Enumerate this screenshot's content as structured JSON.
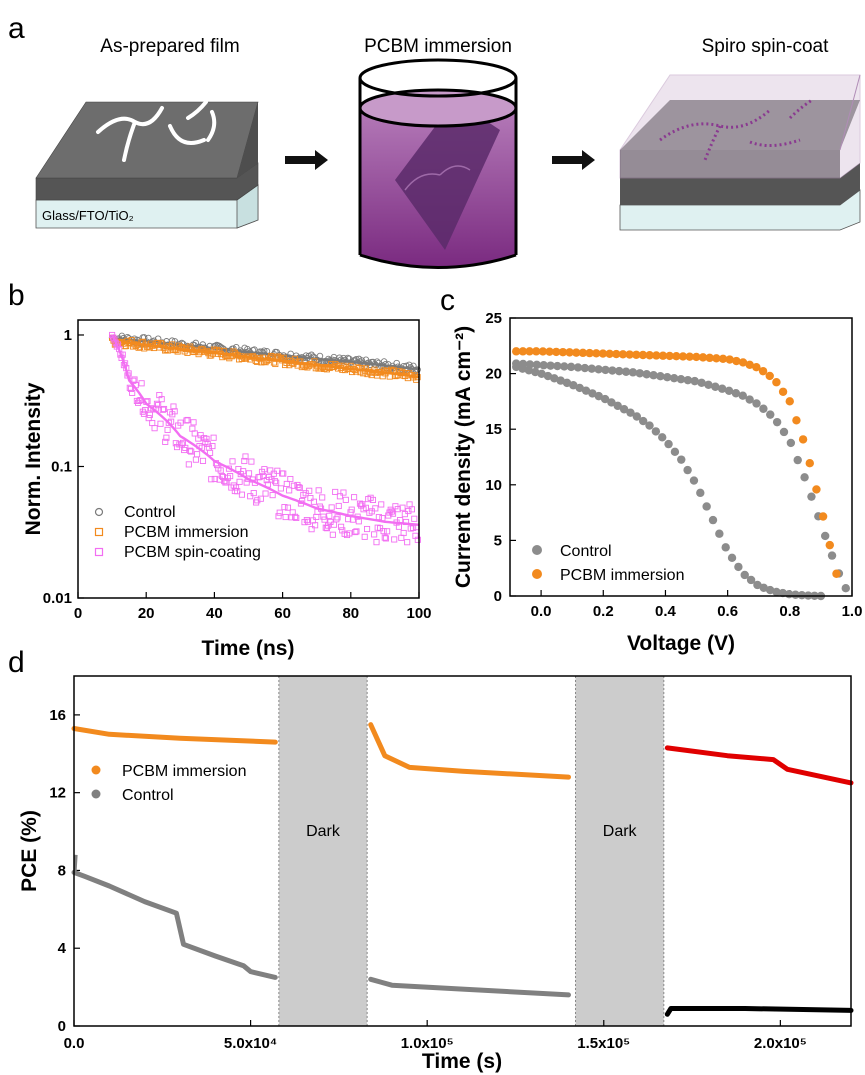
{
  "panel_a": {
    "label": "a",
    "steps": [
      {
        "title": "As-prepared film",
        "substrate_label": "Glass/FTO/TiO₂"
      },
      {
        "title": "PCBM immersion"
      },
      {
        "title": "Spiro spin-coat"
      }
    ]
  },
  "chart_data": [
    {
      "panel": "b",
      "type": "scatter",
      "xlabel": "Time (ns)",
      "ylabel": "Norm. Intensity",
      "xlim": [
        0,
        100
      ],
      "ylim": [
        0.01,
        1.3
      ],
      "yscale": "log",
      "xticks": [
        "0",
        "20",
        "40",
        "60",
        "80",
        "100"
      ],
      "yticks": [
        "0.01",
        "0.1",
        "1"
      ],
      "legend_position": "bottom-left",
      "series": [
        {
          "name": "Control",
          "color": "#7a7a7a",
          "marker": "open-circle",
          "fit": {
            "x": [
              10,
              30,
              50,
              70,
              100
            ],
            "y": [
              0.95,
              0.84,
              0.74,
              0.66,
              0.55
            ]
          }
        },
        {
          "name": "PCBM immersion",
          "color": "#f28a1e",
          "marker": "open-square",
          "fit": {
            "x": [
              10,
              30,
              50,
              70,
              100
            ],
            "y": [
              0.9,
              0.78,
              0.68,
              0.59,
              0.48
            ]
          }
        },
        {
          "name": "PCBM spin-coating",
          "color": "#f26ef2",
          "marker": "open-square",
          "fit": {
            "x": [
              10,
              15,
              20,
              30,
              40,
              50,
              60,
              70,
              80,
              90,
              100
            ],
            "y": [
              1.0,
              0.45,
              0.3,
              0.17,
              0.11,
              0.08,
              0.06,
              0.048,
              0.042,
              0.038,
              0.036
            ]
          }
        }
      ]
    },
    {
      "panel": "c",
      "type": "scatter",
      "xlabel": "Voltage (V)",
      "ylabel": "Current density (mA cm⁻²)",
      "xlim": [
        -0.1,
        1.0
      ],
      "ylim": [
        0,
        25
      ],
      "xticks": [
        "0.0",
        "0.2",
        "0.4",
        "0.6",
        "0.8",
        "1.0"
      ],
      "yticks": [
        "0",
        "5",
        "10",
        "15",
        "20",
        "25"
      ],
      "legend_position": "bottom-left",
      "series": [
        {
          "name": "Control",
          "color": "#8c8c8c",
          "x": [
            -0.08,
            0.0,
            0.1,
            0.2,
            0.3,
            0.35,
            0.4,
            0.45,
            0.5,
            0.55,
            0.6,
            0.65,
            0.7,
            0.75,
            0.8,
            0.85,
            0.9
          ],
          "y": [
            20.6,
            20.0,
            19.0,
            17.8,
            16.3,
            15.3,
            14.0,
            12.3,
            10.0,
            7.0,
            4.0,
            2.0,
            0.9,
            0.4,
            0.15,
            0.05,
            0.0
          ]
        },
        {
          "name": "Control",
          "color": "#8c8c8c",
          "x": [
            -0.08,
            0.1,
            0.3,
            0.5,
            0.6,
            0.65,
            0.7,
            0.75,
            0.8,
            0.85,
            0.9,
            0.95,
            0.98
          ],
          "y": [
            20.9,
            20.6,
            20.1,
            19.3,
            18.5,
            18.0,
            17.2,
            16.0,
            14.0,
            10.5,
            6.5,
            2.5,
            0.7
          ]
        },
        {
          "name": "PCBM immersion",
          "color": "#f28a1e",
          "x": [
            -0.08,
            0.0,
            0.1,
            0.2,
            0.3,
            0.4,
            0.5,
            0.6,
            0.65,
            0.7,
            0.75,
            0.8,
            0.85,
            0.9,
            0.95
          ],
          "y": [
            22.0,
            22.0,
            21.9,
            21.8,
            21.7,
            21.6,
            21.5,
            21.3,
            21.0,
            20.5,
            19.5,
            17.5,
            13.5,
            8.0,
            2.0
          ]
        }
      ]
    },
    {
      "panel": "d",
      "type": "scatter",
      "xlabel": "Time (s)",
      "ylabel": "PCE (%)",
      "xlim": [
        0,
        220000
      ],
      "ylim": [
        0,
        18
      ],
      "xticks": [
        "0.0",
        "5.0x10⁴",
        "1.0x10⁵",
        "1.5x10⁵",
        "2.0x10⁵"
      ],
      "yticks": [
        "0",
        "4",
        "8",
        "12",
        "16"
      ],
      "legend_position": "upper-left",
      "dark_periods": [
        {
          "label": "Dark",
          "x": [
            58000,
            83000
          ]
        },
        {
          "label": "Dark",
          "x": [
            142000,
            167000
          ]
        }
      ],
      "series": [
        {
          "name": "PCBM immersion",
          "color": "#f28a1e",
          "segments": [
            {
              "x": [
                0,
                10000,
                30000,
                57000
              ],
              "y": [
                15.3,
                15.0,
                14.8,
                14.6
              ]
            },
            {
              "x": [
                84000,
                88000,
                95000,
                110000,
                140000
              ],
              "y": [
                15.5,
                13.9,
                13.3,
                13.1,
                12.8
              ]
            }
          ]
        },
        {
          "name": "Control",
          "color": "#808080",
          "segments": [
            {
              "x": [
                0,
                3000,
                10000,
                20000,
                29000,
                31000,
                40000,
                48000,
                50000,
                57000
              ],
              "y": [
                7.9,
                7.7,
                7.2,
                6.4,
                5.8,
                4.2,
                3.6,
                3.1,
                2.8,
                2.5
              ]
            },
            {
              "x": [
                84000,
                90000,
                110000,
                140000
              ],
              "y": [
                2.4,
                2.1,
                1.9,
                1.6
              ]
            }
          ]
        },
        {
          "color": "#e00000",
          "segments": [
            {
              "x": [
                168000,
                185000,
                198000,
                202000,
                220000
              ],
              "y": [
                14.3,
                13.9,
                13.7,
                13.2,
                12.5
              ]
            }
          ]
        },
        {
          "color": "#000000",
          "segments": [
            {
              "x": [
                168000,
                169000,
                190000,
                220000
              ],
              "y": [
                0.6,
                0.9,
                0.9,
                0.8
              ]
            }
          ]
        }
      ]
    }
  ]
}
